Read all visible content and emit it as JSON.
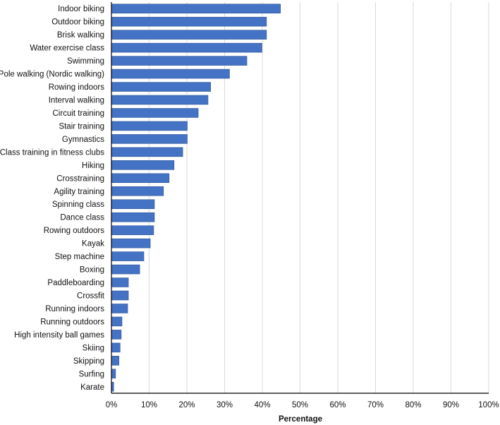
{
  "chart_data": {
    "type": "bar",
    "orientation": "horizontal",
    "title": "",
    "xlabel": "Percentage",
    "ylabel": "",
    "xlim": [
      0,
      100
    ],
    "grid": true,
    "legend": "none",
    "bar_color": "#4472C4",
    "bar_edge_color": "#2F5597",
    "grid_color": "#d9d9d9",
    "axis_color": "#000000",
    "tick_labels": [
      "0%",
      "10%",
      "20%",
      "30%",
      "40%",
      "50%",
      "60%",
      "70%",
      "80%",
      "90%",
      "100%"
    ],
    "categories": [
      "Indoor biking",
      "Outdoor biking",
      "Brisk walking",
      "Water exercise class",
      "Swimming",
      "Pole walking (Nordic walking)",
      "Rowing indoors",
      "Interval walking",
      "Circuit training",
      "Stair training",
      "Gymnastics",
      "Class training in fitness clubs",
      "Hiking",
      "Crosstraining",
      "Agility training",
      "Spinning class",
      "Dance class",
      "Rowing outdoors",
      "Kayak",
      "Step machine",
      "Boxing",
      "Paddleboarding",
      "Crossfit",
      "Running indoors",
      "Running outdoors",
      "High intensity ball games",
      "Skiing",
      "Skipping",
      "Surfing",
      "Karate"
    ],
    "values": [
      44.8,
      41.1,
      41.1,
      39.9,
      35.9,
      31.3,
      26.3,
      25.6,
      23.0,
      20.1,
      20.1,
      18.9,
      16.6,
      15.3,
      13.8,
      11.4,
      11.4,
      11.2,
      10.3,
      8.6,
      7.5,
      4.5,
      4.5,
      4.3,
      2.8,
      2.6,
      2.3,
      2.0,
      1.1,
      0.6
    ]
  }
}
